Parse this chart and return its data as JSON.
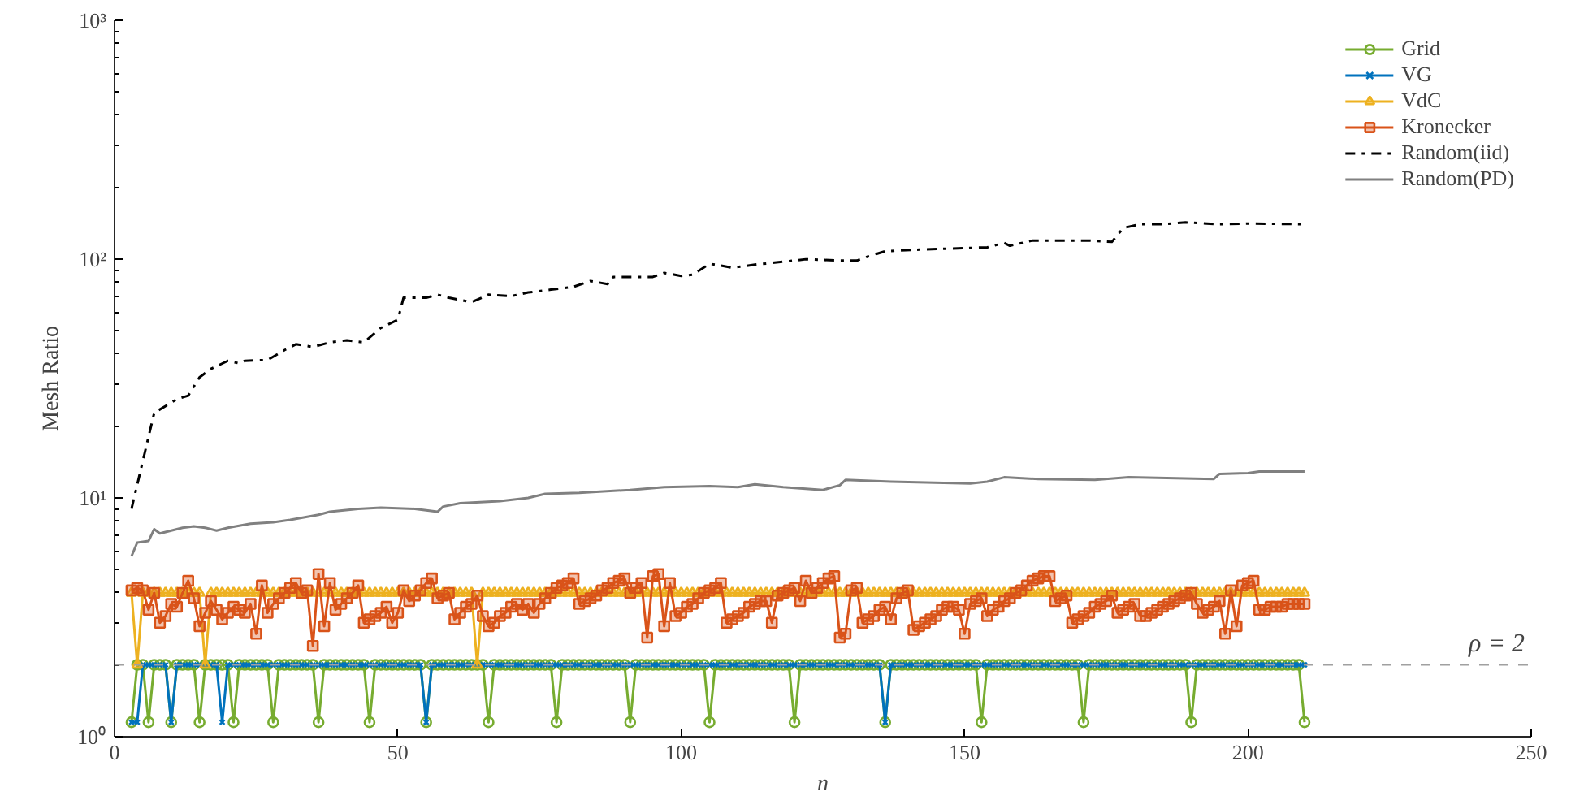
{
  "chart_data": {
    "type": "line",
    "xlabel": "n",
    "ylabel": "Mesh Ratio",
    "log": "y",
    "xlim": [
      0,
      250
    ],
    "xticks": [
      0,
      50,
      100,
      150,
      200,
      250
    ],
    "ylim": [
      1,
      1000
    ],
    "yticks": [
      {
        "value": 1,
        "label": "10⁰"
      },
      {
        "value": 10,
        "label": "10¹"
      },
      {
        "value": 100,
        "label": "10²"
      },
      {
        "value": 1000,
        "label": "10³"
      }
    ],
    "legend": "top right",
    "ref_lines": [
      {
        "axis": "y",
        "value": 2,
        "label": "ρ = 2",
        "color": "#a0a0a0",
        "line_style": "dashed"
      }
    ],
    "x": [
      3,
      4,
      5,
      6,
      7,
      8,
      9,
      10,
      11,
      12,
      13,
      14,
      15,
      16,
      17,
      18,
      19,
      20,
      21,
      22,
      23,
      24,
      25,
      26,
      27,
      28,
      29,
      30,
      31,
      32,
      33,
      34,
      35,
      36,
      37,
      38,
      39,
      40,
      41,
      42,
      43,
      44,
      45,
      46,
      47,
      48,
      49,
      50,
      51,
      52,
      53,
      54,
      55,
      56,
      57,
      58,
      59,
      60,
      61,
      62,
      63,
      64,
      65,
      66,
      67,
      68,
      69,
      70,
      71,
      72,
      73,
      74,
      75,
      76,
      77,
      78,
      79,
      80,
      81,
      82,
      83,
      84,
      85,
      86,
      87,
      88,
      89,
      90,
      91,
      92,
      93,
      94,
      95,
      96,
      97,
      98,
      99,
      100,
      101,
      102,
      103,
      104,
      105,
      106,
      107,
      108,
      109,
      110,
      111,
      112,
      113,
      114,
      115,
      116,
      117,
      118,
      119,
      120,
      121,
      122,
      123,
      124,
      125,
      126,
      127,
      128,
      129,
      130,
      131,
      132,
      133,
      134,
      135,
      136,
      137,
      138,
      139,
      140,
      141,
      142,
      143,
      144,
      145,
      146,
      147,
      148,
      149,
      150,
      151,
      152,
      153,
      154,
      155,
      156,
      157,
      158,
      159,
      160,
      161,
      162,
      163,
      164,
      165,
      166,
      167,
      168,
      169,
      170,
      171,
      172,
      173,
      174,
      175,
      176,
      177,
      178,
      179,
      180,
      181,
      182,
      183,
      184,
      185,
      186,
      187,
      188,
      189,
      190,
      191,
      192,
      193,
      194,
      195,
      196,
      197,
      198,
      199,
      200,
      201,
      202,
      203,
      204,
      205,
      206,
      207,
      208,
      209,
      210
    ],
    "series": [
      {
        "name": "Grid",
        "color": "#77ac30",
        "marker": "circle",
        "line_style": "solid",
        "values": [
          1.15,
          2,
          2,
          1.15,
          2,
          2,
          2,
          1.15,
          2,
          2,
          2,
          2,
          1.15,
          2,
          2,
          2,
          2,
          2,
          1.15,
          2,
          2,
          2,
          2,
          2,
          2,
          1.15,
          2,
          2,
          2,
          2,
          2,
          2,
          2,
          1.15,
          2,
          2,
          2,
          2,
          2,
          2,
          2,
          2,
          1.15,
          2,
          2,
          2,
          2,
          2,
          2,
          2,
          2,
          2,
          1.15,
          2,
          2,
          2,
          2,
          2,
          2,
          2,
          2,
          2,
          2,
          1.15,
          2,
          2,
          2,
          2,
          2,
          2,
          2,
          2,
          2,
          2,
          2,
          1.15,
          2,
          2,
          2,
          2,
          2,
          2,
          2,
          2,
          2,
          2,
          2,
          2,
          1.15,
          2,
          2,
          2,
          2,
          2,
          2,
          2,
          2,
          2,
          2,
          2,
          2,
          2,
          1.15,
          2,
          2,
          2,
          2,
          2,
          2,
          2,
          2,
          2,
          2,
          2,
          2,
          2,
          2,
          1.15,
          2,
          2,
          2,
          2,
          2,
          2,
          2,
          2,
          2,
          2,
          2,
          2,
          2,
          2,
          2,
          1.15,
          2,
          2,
          2,
          2,
          2,
          2,
          2,
          2,
          2,
          2,
          2,
          2,
          2,
          2,
          2,
          2,
          1.15,
          2,
          2,
          2,
          2,
          2,
          2,
          2,
          2,
          2,
          2,
          2,
          2,
          2,
          2,
          2,
          2,
          2,
          1.15,
          2,
          2,
          2,
          2,
          2,
          2,
          2,
          2,
          2,
          2,
          2,
          2,
          2,
          2,
          2,
          2,
          2,
          2,
          1.15,
          2,
          2,
          2,
          2,
          2,
          2,
          2,
          2,
          2,
          2,
          2,
          2,
          2,
          2,
          2,
          2,
          2,
          2,
          2,
          1.15
        ]
      },
      {
        "name": "VG",
        "color": "#0072bd",
        "marker": "cross",
        "line_style": "solid",
        "values": [
          1.15,
          1.15,
          2,
          2,
          2,
          2,
          2,
          1.15,
          2,
          2,
          2,
          2,
          2,
          2,
          2,
          2,
          1.15,
          2,
          2,
          2,
          2,
          2,
          2,
          2,
          2,
          2,
          2,
          2,
          2,
          2,
          2,
          2,
          2,
          2,
          2,
          2,
          2,
          2,
          2,
          2,
          2,
          2,
          2,
          2,
          2,
          2,
          2,
          2,
          2,
          2,
          2,
          2,
          1.15,
          2,
          2,
          2,
          2,
          2,
          2,
          2,
          2,
          2,
          2,
          2,
          2,
          2,
          2,
          2,
          2,
          2,
          2,
          2,
          2,
          2,
          2,
          2,
          2,
          2,
          2,
          2,
          2,
          2,
          2,
          2,
          2,
          2,
          2,
          2,
          2,
          2,
          2,
          2,
          2,
          2,
          2,
          2,
          2,
          2,
          2,
          2,
          2,
          2,
          2,
          2,
          2,
          2,
          2,
          2,
          2,
          2,
          2,
          2,
          2,
          2,
          2,
          2,
          2,
          2,
          2,
          2,
          2,
          2,
          2,
          2,
          2,
          2,
          2,
          2,
          2,
          2,
          2,
          2,
          2,
          1.15,
          2,
          2,
          2,
          2,
          2,
          2,
          2,
          2,
          2,
          2,
          2,
          2,
          2,
          2,
          2,
          2,
          2,
          2,
          2,
          2,
          2,
          2,
          2,
          2,
          2,
          2,
          2,
          2,
          2,
          2,
          2,
          2,
          2,
          2,
          2,
          2,
          2,
          2,
          2,
          2,
          2,
          2,
          2,
          2,
          2,
          2,
          2,
          2,
          2,
          2,
          2,
          2,
          2,
          2,
          2,
          2,
          2,
          2,
          2,
          2,
          2,
          2,
          2,
          2,
          2,
          2,
          2,
          2,
          2,
          2,
          2,
          2,
          2,
          2
        ]
      },
      {
        "name": "VdC",
        "color": "#edb120",
        "marker": "triangle",
        "line_style": "solid",
        "values": [
          4,
          2,
          4,
          4,
          4,
          4,
          4,
          4,
          4,
          4,
          4,
          4,
          4,
          2,
          4,
          4,
          4,
          4,
          4,
          4,
          4,
          4,
          4,
          4,
          4,
          4,
          4,
          4,
          4,
          4,
          4,
          4,
          4,
          4,
          4,
          4,
          4,
          4,
          4,
          4,
          4,
          4,
          4,
          4,
          4,
          4,
          4,
          4,
          4,
          4,
          4,
          4,
          4,
          4,
          4,
          4,
          4,
          4,
          4,
          4,
          4,
          2,
          4,
          4,
          4,
          4,
          4,
          4,
          4,
          4,
          4,
          4,
          4,
          4,
          4,
          4,
          4,
          4,
          4,
          4,
          4,
          4,
          4,
          4,
          4,
          4,
          4,
          4,
          4,
          4,
          4,
          4,
          4,
          4,
          4,
          4,
          4,
          4,
          4,
          4,
          4,
          4,
          4,
          4,
          4,
          4,
          4,
          4,
          4,
          4,
          4,
          4,
          4,
          4,
          4,
          4,
          4,
          4,
          4,
          4,
          4,
          4,
          4,
          4,
          4,
          4,
          4,
          4,
          4,
          4,
          4,
          4,
          4,
          4,
          4,
          4,
          4,
          4,
          4,
          4,
          4,
          4,
          4,
          4,
          4,
          4,
          4,
          4,
          4,
          4,
          4,
          4,
          4,
          4,
          4,
          4,
          4,
          4,
          4,
          4,
          4,
          4,
          4,
          4,
          4,
          4,
          4,
          4,
          4,
          4,
          4,
          4,
          4,
          4,
          4,
          4,
          4,
          4,
          4,
          4,
          4,
          4,
          4,
          4,
          4,
          4,
          4,
          4,
          4,
          4,
          4,
          4,
          4,
          4,
          4,
          4,
          4,
          4,
          4,
          4,
          4,
          4,
          4,
          4,
          4,
          4,
          4,
          4
        ]
      },
      {
        "name": "Kronecker",
        "color": "#d95319",
        "marker": "square",
        "line_style": "solid",
        "values": [
          4.1,
          4.2,
          4.1,
          3.4,
          4.0,
          3.0,
          3.2,
          3.6,
          3.5,
          4.0,
          4.5,
          3.8,
          2.9,
          3.3,
          3.7,
          3.4,
          3.1,
          3.3,
          3.5,
          3.4,
          3.3,
          3.6,
          2.7,
          4.3,
          3.3,
          3.6,
          3.8,
          4.0,
          4.2,
          4.4,
          4.0,
          4.1,
          2.4,
          4.8,
          2.9,
          4.4,
          3.4,
          3.6,
          3.8,
          4.0,
          4.3,
          3.0,
          3.1,
          3.2,
          3.3,
          3.5,
          3.0,
          3.3,
          4.1,
          3.7,
          3.9,
          4.1,
          4.4,
          4.6,
          3.8,
          3.9,
          4.0,
          3.1,
          3.3,
          3.5,
          3.6,
          3.9,
          3.2,
          2.9,
          3.0,
          3.2,
          3.3,
          3.5,
          3.6,
          3.4,
          3.6,
          3.3,
          3.6,
          3.8,
          4.0,
          4.2,
          4.3,
          4.4,
          4.6,
          3.6,
          3.7,
          3.8,
          3.9,
          4.1,
          4.2,
          4.4,
          4.5,
          4.6,
          4.0,
          4.2,
          4.4,
          2.6,
          4.7,
          4.8,
          2.9,
          4.4,
          3.2,
          3.3,
          3.5,
          3.6,
          3.8,
          4.0,
          4.1,
          4.2,
          4.4,
          3.0,
          3.1,
          3.2,
          3.3,
          3.5,
          3.6,
          3.7,
          3.7,
          3.0,
          3.9,
          4.0,
          4.1,
          4.2,
          3.7,
          4.5,
          4.0,
          4.2,
          4.4,
          4.6,
          4.7,
          2.6,
          2.7,
          4.1,
          4.2,
          3.0,
          3.1,
          3.2,
          3.4,
          3.5,
          3.1,
          3.8,
          4.0,
          4.1,
          2.8,
          2.9,
          3.0,
          3.1,
          3.2,
          3.4,
          3.5,
          3.5,
          3.4,
          2.7,
          3.6,
          3.7,
          3.8,
          3.2,
          3.4,
          3.5,
          3.7,
          3.8,
          4.0,
          4.1,
          4.3,
          4.5,
          4.6,
          4.7,
          4.7,
          3.7,
          3.8,
          3.9,
          3.0,
          3.1,
          3.2,
          3.3,
          3.5,
          3.6,
          3.7,
          3.9,
          3.3,
          3.4,
          3.5,
          3.6,
          3.2,
          3.2,
          3.3,
          3.4,
          3.5,
          3.6,
          3.7,
          3.8,
          3.9,
          4.0,
          3.6,
          3.3,
          3.4,
          3.5,
          3.7,
          2.7,
          4.1,
          2.9,
          4.3,
          4.4,
          4.5,
          3.4,
          3.4,
          3.5,
          3.5,
          3.5,
          3.6,
          3.6,
          3.6,
          3.6
        ]
      },
      {
        "name": "Random(iid)",
        "color": "#000000",
        "marker": "none",
        "line_style": "dashdot",
        "x": [
          3,
          7,
          11,
          13,
          15,
          17,
          20,
          22,
          23,
          27,
          30,
          32,
          35,
          38,
          41,
          44,
          47,
          50,
          51,
          55,
          57,
          59,
          63,
          66,
          70,
          73,
          77,
          81,
          84,
          87,
          88,
          92,
          95,
          97,
          100,
          102,
          105,
          107,
          109,
          113,
          118,
          122,
          128,
          131,
          133,
          136,
          142,
          148,
          154,
          157,
          158,
          162,
          167,
          172,
          176,
          178,
          181,
          185,
          189,
          195,
          200,
          210
        ],
        "values": [
          9.0,
          22.7,
          25.9,
          26.8,
          32,
          34.7,
          37.5,
          36.6,
          37.5,
          37.8,
          41.6,
          44,
          42.9,
          44.8,
          45.7,
          44.8,
          51.5,
          55.7,
          68.9,
          68.9,
          71,
          68.9,
          66,
          71,
          70,
          72.5,
          74.5,
          76.6,
          81,
          78.6,
          84.2,
          84.2,
          84.2,
          87.6,
          85,
          86,
          95.6,
          94,
          92,
          94.8,
          97.5,
          99.9,
          98.6,
          98.6,
          102.6,
          107.9,
          109.6,
          110.8,
          112,
          116.8,
          113.7,
          119.6,
          119.6,
          119.6,
          118,
          135,
          140,
          140,
          142.5,
          140,
          141,
          140
        ]
      },
      {
        "name": "Random(PD)",
        "color": "#808080",
        "marker": "none",
        "line_style": "solid",
        "x": [
          3,
          4,
          6,
          7,
          8,
          10,
          12,
          14,
          16,
          18,
          20,
          24,
          28,
          31,
          36,
          38,
          43,
          47,
          53,
          57,
          58,
          61,
          68,
          73,
          76,
          82,
          91,
          97,
          105,
          110,
          113,
          118,
          125,
          128,
          129,
          137,
          151,
          154,
          157,
          163,
          173,
          179,
          194,
          195,
          200,
          202,
          210
        ],
        "values": [
          5.7,
          6.5,
          6.6,
          7.4,
          7.1,
          7.3,
          7.5,
          7.6,
          7.5,
          7.3,
          7.5,
          7.8,
          7.9,
          8.1,
          8.5,
          8.75,
          9.0,
          9.1,
          9.0,
          8.75,
          9.2,
          9.5,
          9.7,
          10,
          10.4,
          10.5,
          10.8,
          11.1,
          11.2,
          11.1,
          11.4,
          11.1,
          10.8,
          11.3,
          11.9,
          11.7,
          11.5,
          11.7,
          12.2,
          12.0,
          11.9,
          12.2,
          12.0,
          12.6,
          12.7,
          12.9,
          12.9
        ]
      }
    ]
  }
}
